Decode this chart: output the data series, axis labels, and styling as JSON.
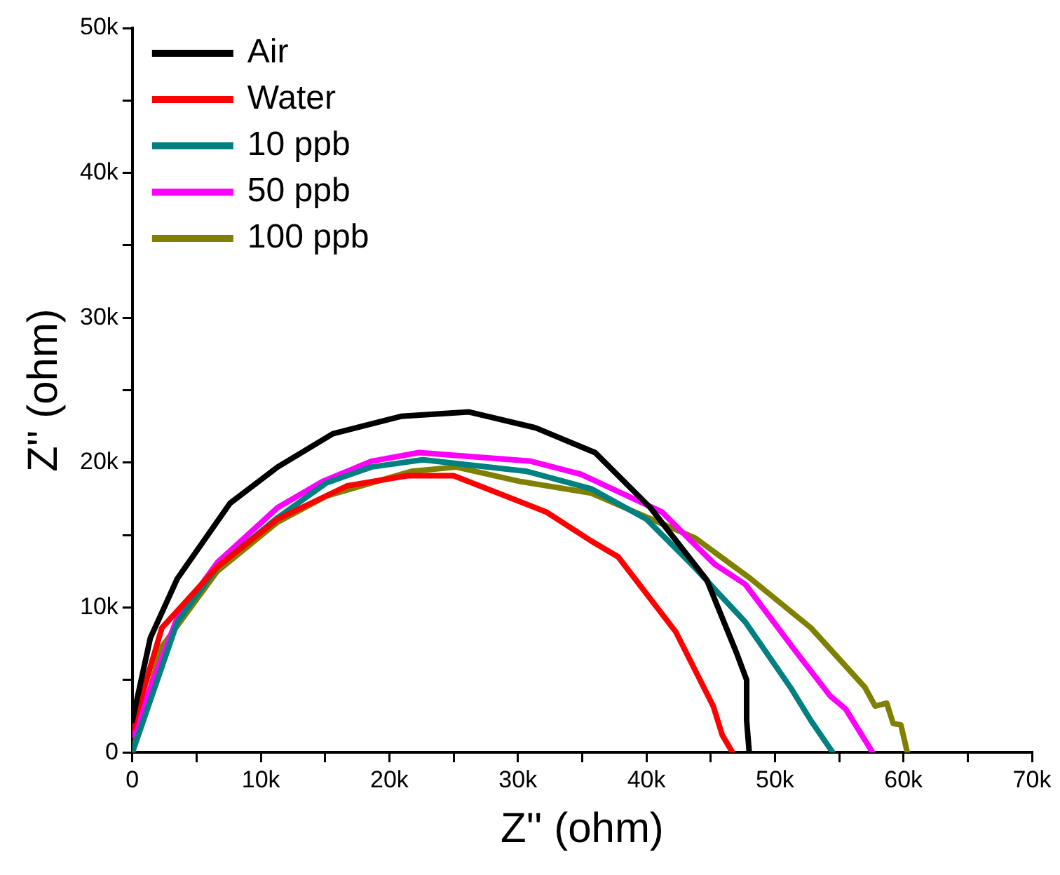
{
  "chart_data": {
    "type": "line",
    "xlabel": "Z'' (ohm)",
    "ylabel": "Z'' (ohm)",
    "legend": "top left",
    "marker": "none",
    "line_style": "solid",
    "grid": false,
    "xlim": [
      0,
      70000
    ],
    "ylim": [
      0,
      50000
    ],
    "xticks": [
      {
        "value": 0,
        "label": "0"
      },
      {
        "value": 5000,
        "label": null
      },
      {
        "value": 10000,
        "label": "10k"
      },
      {
        "value": 15000,
        "label": null
      },
      {
        "value": 20000,
        "label": "20k"
      },
      {
        "value": 25000,
        "label": null
      },
      {
        "value": 30000,
        "label": "30k"
      },
      {
        "value": 35000,
        "label": null
      },
      {
        "value": 40000,
        "label": "40k"
      },
      {
        "value": 45000,
        "label": null
      },
      {
        "value": 50000,
        "label": "50k"
      },
      {
        "value": 55000,
        "label": null
      },
      {
        "value": 60000,
        "label": "60k"
      },
      {
        "value": 65000,
        "label": null
      },
      {
        "value": 70000,
        "label": "70k"
      }
    ],
    "yticks": [
      {
        "value": 0,
        "label": "0"
      },
      {
        "value": 5000,
        "label": null
      },
      {
        "value": 10000,
        "label": "10k"
      },
      {
        "value": 15000,
        "label": null
      },
      {
        "value": 20000,
        "label": "20k"
      },
      {
        "value": 25000,
        "label": null
      },
      {
        "value": 30000,
        "label": "30k"
      },
      {
        "value": 35000,
        "label": null
      },
      {
        "value": 40000,
        "label": "40k"
      },
      {
        "value": 45000,
        "label": null
      },
      {
        "value": 50000,
        "label": "50k"
      }
    ],
    "series": [
      {
        "name": "Air",
        "color": "#000000",
        "x": [
          0,
          1400,
          3500,
          7600,
          11300,
          15600,
          20900,
          26200,
          31400,
          36000,
          40300,
          44700,
          47000,
          47800,
          47800,
          48000
        ],
        "values": [
          2200,
          7900,
          12000,
          17200,
          19700,
          22000,
          23200,
          23500,
          22400,
          20700,
          16900,
          11900,
          6900,
          5000,
          2200,
          0
        ]
      },
      {
        "name": "Water",
        "color": "#ff0000",
        "x": [
          0,
          2300,
          6600,
          11300,
          16700,
          21400,
          25000,
          32200,
          35700,
          37800,
          42300,
          45200,
          45900,
          46700
        ],
        "values": [
          1700,
          8600,
          12800,
          16100,
          18400,
          19100,
          19100,
          16600,
          14600,
          13500,
          8300,
          3200,
          1200,
          0
        ]
      },
      {
        "name": "10 ppb",
        "color": "#008080",
        "x": [
          0,
          3500,
          6600,
          11300,
          15100,
          18600,
          22600,
          30700,
          35700,
          40000,
          43500,
          47700,
          51200,
          52800,
          54500
        ],
        "values": [
          0,
          9000,
          12800,
          16200,
          18600,
          19700,
          20200,
          19400,
          18200,
          16100,
          13000,
          9000,
          4500,
          2200,
          0
        ]
      },
      {
        "name": "50 ppb",
        "color": "#ff00ff",
        "x": [
          0,
          3500,
          6600,
          11300,
          14800,
          18600,
          22300,
          31000,
          34900,
          41200,
          45300,
          47700,
          51600,
          54300,
          55500,
          57600
        ],
        "values": [
          1200,
          9300,
          13100,
          16900,
          18700,
          20100,
          20700,
          20100,
          19200,
          16600,
          13000,
          11600,
          7000,
          3900,
          3000,
          0
        ]
      },
      {
        "name": "100 ppb",
        "color": "#808000",
        "x": [
          0,
          2300,
          6600,
          11300,
          15100,
          21700,
          25200,
          30200,
          35700,
          43800,
          48100,
          52800,
          57000,
          57800,
          58700,
          59200,
          59800,
          60300
        ],
        "values": [
          0,
          7300,
          12500,
          15900,
          17700,
          19400,
          19700,
          18700,
          17900,
          14800,
          12000,
          8600,
          4500,
          3200,
          3400,
          2000,
          1900,
          0
        ]
      }
    ]
  }
}
